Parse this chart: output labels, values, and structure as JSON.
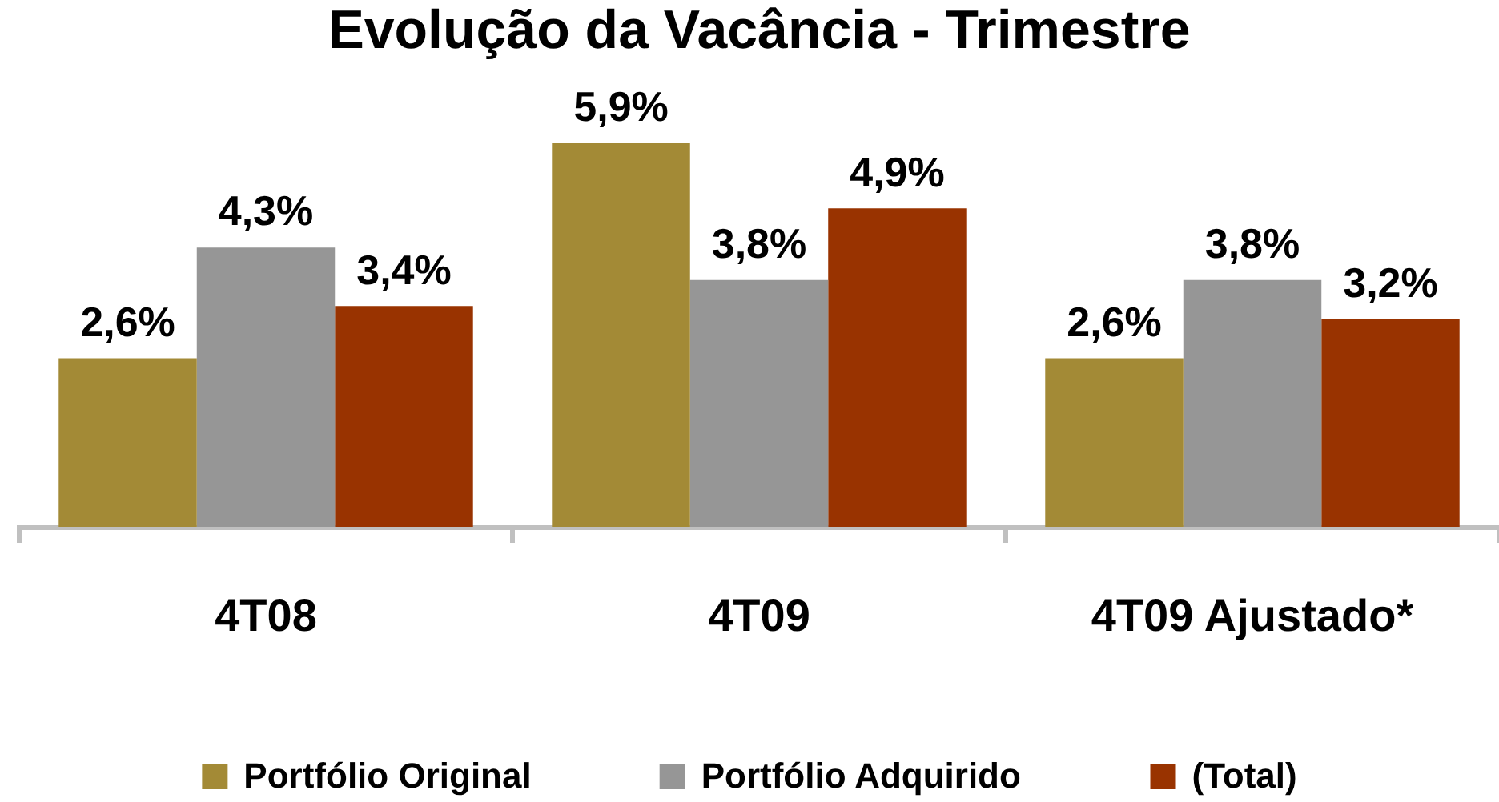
{
  "chart_data": {
    "type": "bar",
    "title": "Evolução da Vacância - Trimestre",
    "categories": [
      "4T08",
      "4T09",
      "4T09 Ajustado*"
    ],
    "series": [
      {
        "name": "Portfólio Original",
        "color": "#a38a36",
        "values": [
          2.6,
          5.9,
          2.6
        ],
        "value_labels": [
          "2,6%",
          "5,9%",
          "2,6%"
        ]
      },
      {
        "name": "Portfólio Adquirido",
        "color": "#969696",
        "values": [
          4.3,
          3.8,
          3.8
        ],
        "value_labels": [
          "4,3%",
          "3,8%",
          "3,8%"
        ]
      },
      {
        "name": "(Total)",
        "color": "#993300",
        "values": [
          3.4,
          4.9,
          3.2
        ],
        "value_labels": [
          "3,4%",
          "4,9%",
          "3,2%"
        ]
      }
    ],
    "legend": "bottom"
  }
}
